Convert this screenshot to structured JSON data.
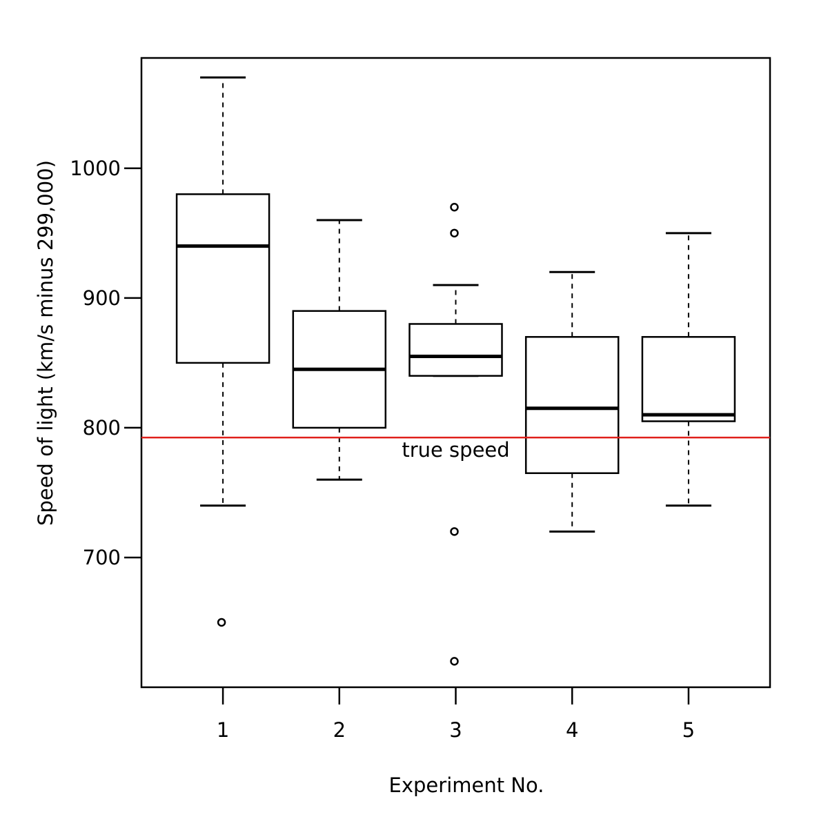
{
  "chart_data": {
    "type": "boxplot",
    "title": "",
    "xlabel": "Experiment No.",
    "ylabel": "Speed of light (km/s minus 299,000)",
    "categories": [
      "1",
      "2",
      "3",
      "4",
      "5"
    ],
    "y_ticks": [
      700,
      800,
      900,
      1000
    ],
    "y_tick_labels": [
      "700",
      "800",
      "900",
      "1000"
    ],
    "ylim": [
      600,
      1085
    ],
    "xlim": [
      0.3,
      5.7
    ],
    "grid": false,
    "boxes": [
      {
        "category": "1",
        "whisker_low": 740,
        "q1": 850,
        "median": 940,
        "q3": 980,
        "whisker_high": 1070,
        "outliers": [
          650
        ]
      },
      {
        "category": "2",
        "whisker_low": 760,
        "q1": 800,
        "median": 845,
        "q3": 890,
        "whisker_high": 960,
        "outliers": []
      },
      {
        "category": "3",
        "whisker_low": 840,
        "q1": 840,
        "median": 855,
        "q3": 880,
        "whisker_high": 910,
        "outliers": [
          970,
          950,
          720,
          620
        ]
      },
      {
        "category": "4",
        "whisker_low": 720,
        "q1": 765,
        "median": 815,
        "q3": 870,
        "whisker_high": 920,
        "outliers": []
      },
      {
        "category": "5",
        "whisker_low": 740,
        "q1": 805,
        "median": 810,
        "q3": 870,
        "whisker_high": 950,
        "outliers": []
      }
    ],
    "reference_line": {
      "y": 792.458,
      "label": "true speed",
      "color": "#e0201b"
    },
    "colors": {
      "box": "#000000",
      "reference": "#e0201b"
    }
  }
}
